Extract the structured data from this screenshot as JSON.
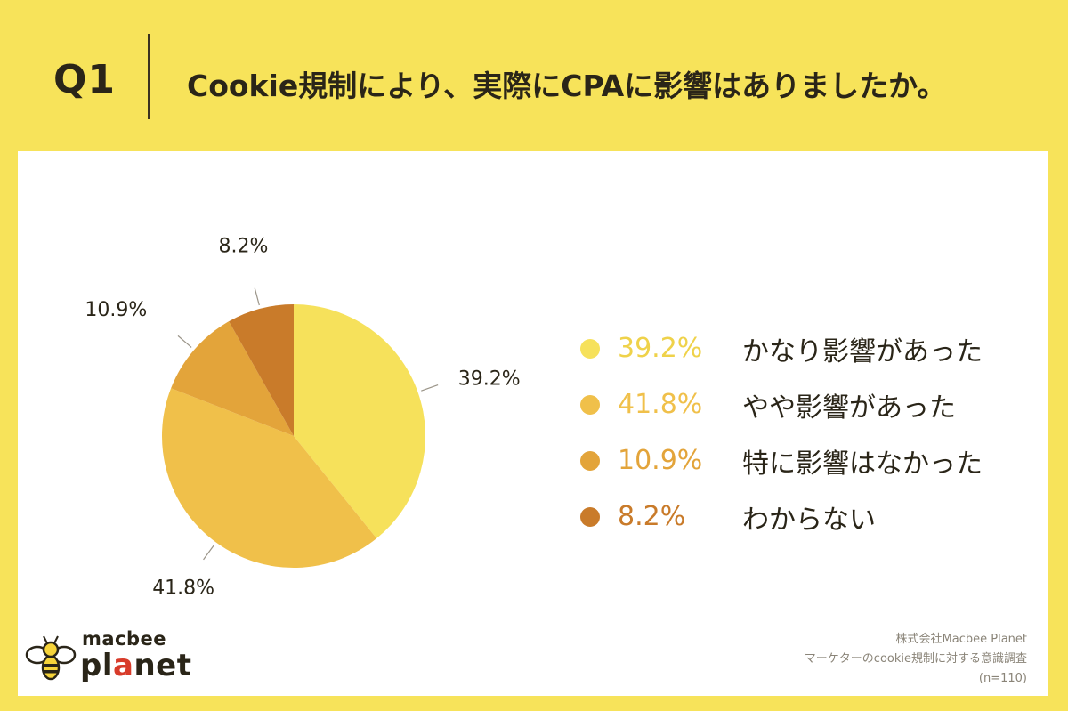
{
  "header": {
    "question_number": "Q1",
    "question_text": "Cookie規制により、実際にCPAに影響はありましたか。"
  },
  "chart_data": {
    "type": "pie",
    "categories": [
      "かなり影響があった",
      "やや影響があった",
      "特に影響はなかった",
      "わからない"
    ],
    "values": [
      39.2,
      41.8,
      10.9,
      8.2
    ],
    "data_labels": [
      "39.2%",
      "41.8%",
      "10.9%",
      "8.2%"
    ],
    "colors": [
      "#f6e15b",
      "#f0c04a",
      "#e3a43a",
      "#c97b2a"
    ],
    "start": "12 o'clock, clockwise",
    "legend_position": "right"
  },
  "legend": {
    "items": [
      {
        "pct": "39.2%",
        "label": "かなり影響があった"
      },
      {
        "pct": "41.8%",
        "label": "やや影響があった"
      },
      {
        "pct": "10.9%",
        "label": "特に影響はなかった"
      },
      {
        "pct": "8.2%",
        "label": "わからない"
      }
    ]
  },
  "logo": {
    "line1": "macbee",
    "line2_part1": "pl",
    "line2_accent": "a",
    "line2_part2": "net",
    "icon": "bee-icon"
  },
  "source": {
    "company": "株式会社Macbee Planet",
    "survey": "マーケターのcookie規制に対する意識調査",
    "sample": "(n=110)"
  }
}
